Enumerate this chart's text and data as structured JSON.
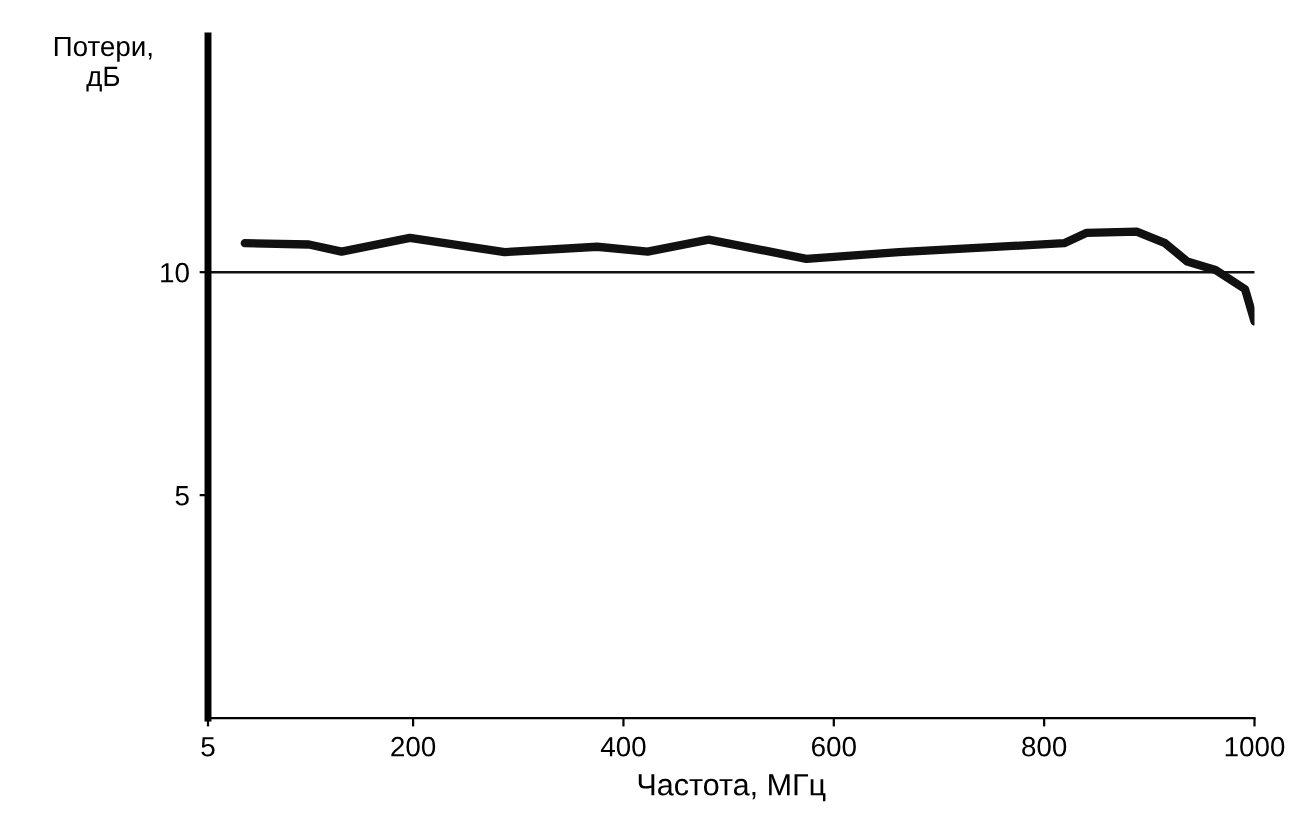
{
  "chart_data": {
    "type": "line",
    "xlabel": "Частота, МГц",
    "ylabel": "Потери,\nдБ",
    "x": [
      40,
      101,
      132,
      197,
      287,
      375,
      423,
      481,
      574,
      662,
      819,
      840,
      888,
      915,
      936,
      963,
      991,
      1000
    ],
    "values": [
      10.65,
      10.62,
      10.46,
      10.77,
      10.45,
      10.57,
      10.46,
      10.73,
      10.3,
      10.45,
      10.65,
      10.88,
      10.91,
      10.65,
      10.24,
      10.05,
      9.62,
      8.9
    ],
    "color": "#111111",
    "xlim": [
      5,
      1000
    ],
    "ylim": [
      0,
      15.3
    ],
    "xticks": [
      5,
      200,
      400,
      600,
      800,
      1000
    ],
    "yticks": [
      5,
      10
    ],
    "ref_lines": [
      {
        "axis": "y",
        "value": 10,
        "color": "#111111"
      }
    ],
    "grid": false,
    "legend": false,
    "marker": "none",
    "line_style": "solid"
  }
}
